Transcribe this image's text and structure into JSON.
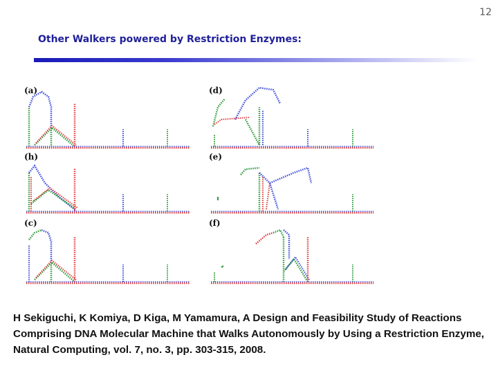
{
  "page_number": "12",
  "title": "Other Walkers powered by Restriction Enzymes:",
  "figure": {
    "panel_labels": [
      "(a)",
      "(d)",
      "(h)",
      "(e)",
      "(c)",
      "(f)"
    ]
  },
  "citation": "H Sekiguchi, K Komiya, D Kiga, M Yamamura, A Design and Feasibility Study of Reactions Comprising DNA Molecular Machine that Walks Autonomously by Using a Restriction Enzyme, Natural Computing, vol. 7, no. 3, pp. 303-315, 2008.",
  "colors": {
    "title": "#1f1f9a",
    "strand_red": "#e03a3a",
    "strand_blue": "#3a4ad8",
    "strand_green": "#2e9a3a"
  }
}
